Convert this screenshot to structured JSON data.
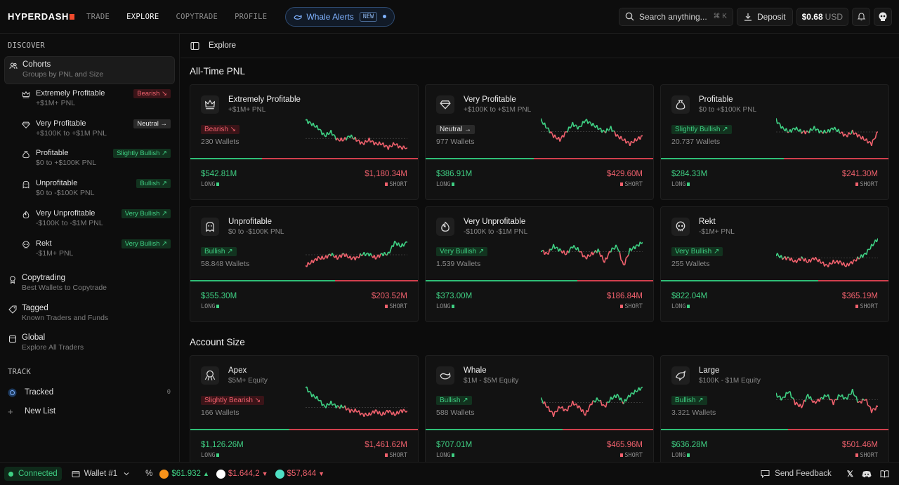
{
  "app": {
    "logo": "HYPERDASH"
  },
  "nav": [
    "TRADE",
    "EXPLORE",
    "COPYTRADE",
    "PROFILE"
  ],
  "nav_active": "EXPLORE",
  "whale_alerts": {
    "label": "Whale Alerts",
    "badge": "NEW"
  },
  "search": {
    "placeholder": "Search anything...",
    "shortcut": "⌘ K"
  },
  "deposit_label": "Deposit",
  "balance": {
    "amount": "$0.68",
    "unit": "USD"
  },
  "sidebar": {
    "discover_label": "DISCOVER",
    "cohorts": {
      "title": "Cohorts",
      "subtitle": "Groups by PNL and Size"
    },
    "sub_items": [
      {
        "title": "Extremely Profitable",
        "subtitle": "+$1M+ PNL",
        "tag": "Bearish ↘",
        "tone": "bear",
        "icon": "crown-icon"
      },
      {
        "title": "Very Profitable",
        "subtitle": "+$100K to +$1M PNL",
        "tag": "Neutral →",
        "tone": "neu",
        "icon": "diamond-icon"
      },
      {
        "title": "Profitable",
        "subtitle": "$0 to +$100K PNL",
        "tag": "Slightly Bullish ↗",
        "tone": "bull",
        "icon": "money-bag-icon"
      },
      {
        "title": "Unprofitable",
        "subtitle": "$0 to -$100K PNL",
        "tag": "Bullish ↗",
        "tone": "bull",
        "icon": "ghost-icon"
      },
      {
        "title": "Very Unprofitable",
        "subtitle": "-$100K to -$1M PNL",
        "tag": "Very Bullish ↗",
        "tone": "bull",
        "icon": "flame-icon"
      },
      {
        "title": "Rekt",
        "subtitle": "-$1M+ PNL",
        "tag": "Very Bullish ↗",
        "tone": "bull",
        "icon": "skull-icon"
      }
    ],
    "copytrading": {
      "title": "Copytrading",
      "subtitle": "Best Wallets to Copytrade"
    },
    "tagged": {
      "title": "Tagged",
      "subtitle": "Known Traders and Funds"
    },
    "global": {
      "title": "Global",
      "subtitle": "Explore All Traders"
    },
    "track_label": "TRACK",
    "tracked": {
      "label": "Tracked",
      "count": "0"
    },
    "new_list": "New List"
  },
  "breadcrumb": "Explore",
  "sections": {
    "pnl": "All-Time PNL",
    "size": "Account Size"
  },
  "cards": [
    {
      "title": "Extremely Profitable",
      "subtitle": "+$1M+ PNL",
      "tag": "Bearish ↘",
      "tone": "bear",
      "wallets": "230 Wallets",
      "long": "$542.81M",
      "short": "$1,180.34M",
      "long_share": 0.315,
      "icon": "crown-icon",
      "trend": [
        8,
        7,
        6,
        4,
        5,
        3,
        3,
        4,
        3,
        2,
        3,
        2,
        2,
        1,
        2,
        1,
        1
      ],
      "split": 2
    },
    {
      "title": "Very Profitable",
      "subtitle": "+$100K to +$1M PNL",
      "tag": "Neutral →",
      "tone": "neu",
      "wallets": "977 Wallets",
      "long": "$386.91M",
      "short": "$429.60M",
      "long_share": 0.474,
      "icon": "diamond-icon",
      "trend": [
        8,
        6,
        4,
        3,
        5,
        7,
        6,
        8,
        7,
        6,
        5,
        6,
        4,
        3,
        2,
        3,
        4
      ],
      "split": 5
    },
    {
      "title": "Profitable",
      "subtitle": "$0 to +$100K PNL",
      "tag": "Slightly Bullish ↗",
      "tone": "bull",
      "wallets": "20.737 Wallets",
      "long": "$284.33M",
      "short": "$241.30M",
      "long_share": 0.541,
      "icon": "money-bag-icon",
      "trend": [
        8,
        6,
        5,
        6,
        5,
        5,
        6,
        5,
        5,
        6,
        5,
        4,
        5,
        4,
        3,
        2,
        5
      ],
      "split": 5
    },
    {
      "title": "Unprofitable",
      "subtitle": "$0 to -$100K PNL",
      "tag": "Bullish ↗",
      "tone": "bull",
      "wallets": "58.848 Wallets",
      "long": "$355.30M",
      "short": "$203.52M",
      "long_share": 0.636,
      "icon": "ghost-icon",
      "trend": [
        2,
        3,
        4,
        4,
        5,
        4,
        5,
        4,
        4,
        5,
        5,
        4,
        5,
        5,
        8,
        7,
        8
      ],
      "split": 4
    },
    {
      "title": "Very Unprofitable",
      "subtitle": "-$100K to -$1M PNL",
      "tag": "Very Bullish ↗",
      "tone": "bull",
      "wallets": "1.539 Wallets",
      "long": "$373.00M",
      "short": "$186.84M",
      "long_share": 0.666,
      "icon": "flame-icon",
      "trend": [
        6,
        5,
        7,
        6,
        5,
        7,
        6,
        4,
        5,
        6,
        3,
        6,
        7,
        2,
        6,
        7,
        8
      ],
      "split": 5
    },
    {
      "title": "Rekt",
      "subtitle": "-$1M+ PNL",
      "tag": "Very Bullish ↗",
      "tone": "bull",
      "wallets": "255 Wallets",
      "long": "$822.04M",
      "short": "$365.19M",
      "long_share": 0.692,
      "icon": "skull-icon",
      "trend": [
        5,
        4,
        4,
        3,
        4,
        3,
        4,
        3,
        2,
        3,
        3,
        2,
        3,
        4,
        5,
        7,
        9
      ],
      "split": 4
    },
    {
      "title": "Apex",
      "subtitle": "$5M+ Equity",
      "tag": "Slightly Bearish ↘",
      "tone": "bear",
      "wallets": "166 Wallets",
      "long": "$1,126.26M",
      "short": "$1,461.62M",
      "long_share": 0.435,
      "icon": "octopus-icon",
      "trend": [
        9,
        7,
        6,
        4,
        5,
        4,
        4,
        3,
        3,
        2,
        2,
        3,
        2,
        3,
        2,
        3,
        3
      ],
      "split": 2
    },
    {
      "title": "Whale",
      "subtitle": "$1M - $5M Equity",
      "tag": "Bullish ↗",
      "tone": "bull",
      "wallets": "588 Wallets",
      "long": "$707.01M",
      "short": "$465.96M",
      "long_share": 0.603,
      "icon": "whale-icon",
      "trend": [
        6,
        4,
        2,
        4,
        3,
        5,
        4,
        2,
        5,
        6,
        4,
        6,
        7,
        5,
        7,
        8,
        9
      ],
      "split": 9
    },
    {
      "title": "Large",
      "subtitle": "$100K - $1M Equity",
      "tag": "Bullish ↗",
      "tone": "bull",
      "wallets": "3.321 Wallets",
      "long": "$636.28M",
      "short": "$501.46M",
      "long_share": 0.559,
      "icon": "dolphin-icon",
      "trend": [
        7,
        6,
        8,
        5,
        4,
        7,
        5,
        6,
        7,
        5,
        7,
        6,
        8,
        5,
        6,
        3,
        4
      ],
      "split": 17
    }
  ],
  "card_labels": {
    "long": "LONG",
    "short": "SHORT"
  },
  "footer": {
    "connected": "Connected",
    "wallet": "Wallet #1",
    "tickers": [
      {
        "price": "$61.932",
        "dir": "▲",
        "tone": "up",
        "color": "#f7931a"
      },
      {
        "price": "$1.644,2",
        "dir": "▼",
        "tone": "down",
        "color": "#ffffff"
      },
      {
        "price": "$57,844",
        "dir": "▼",
        "tone": "down",
        "color": "#4fe0c4"
      }
    ],
    "feedback": "Send Feedback"
  },
  "colors": {
    "green": "#3fcf83",
    "red": "#f0616d",
    "accent_blue": "#7fb2ff"
  }
}
